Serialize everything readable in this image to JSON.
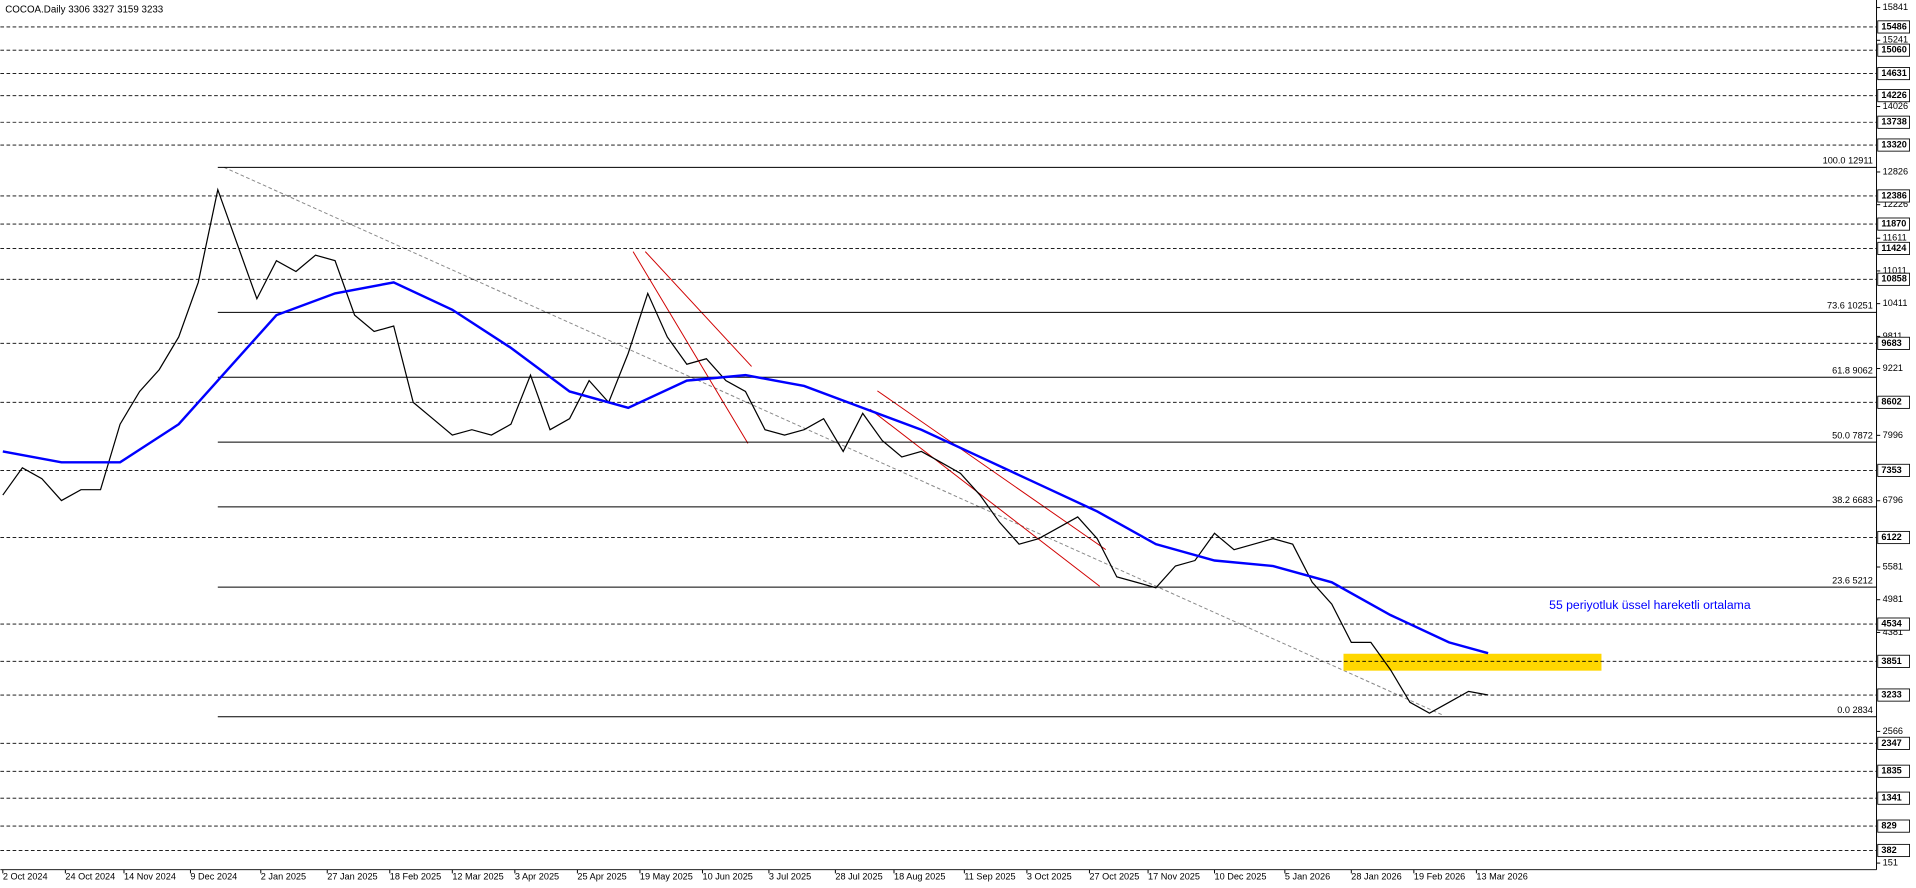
{
  "chart_data": {
    "type": "line",
    "title": "COCOA.Daily  3306 3327 3159 3233",
    "annotation": "55 periyotluk üssel hareketli ortalama",
    "ylim": [
      30,
      15980
    ],
    "yticks": [
      15841,
      15241,
      14026,
      12826,
      12226,
      11611,
      11011,
      10411,
      9811,
      9221,
      7996,
      6796,
      5581,
      4981,
      4381,
      2566,
      151
    ],
    "levels": [
      15486,
      15060,
      14631,
      14226,
      13738,
      13320,
      12386,
      11870,
      11424,
      10858,
      9683,
      8602,
      7353,
      6122,
      4534,
      3851,
      3233,
      2347,
      1835,
      1341,
      829,
      382
    ],
    "fib": {
      "start": "2024-12-18",
      "levels": [
        {
          "value": 12911,
          "label": "100.0 12911"
        },
        {
          "value": 10251,
          "label": "73.6 10251"
        },
        {
          "value": 9062,
          "label": "61.8 9062"
        },
        {
          "value": 7872,
          "label": "50.0 7872"
        },
        {
          "value": 6683,
          "label": "38.2 6683"
        },
        {
          "value": 5212,
          "label": "23.6 5212"
        },
        {
          "value": 2834,
          "label": "0.0 2834"
        }
      ]
    },
    "zones": [
      {
        "x": [
          "2026-01-26",
          "2026-04-28"
        ],
        "y": [
          3680,
          3990
        ],
        "color": "#ffd700"
      }
    ],
    "xticks": [
      {
        "value": "2024-10-02",
        "label": "2 Oct 2024"
      },
      {
        "value": "2024-10-24",
        "label": "24 Oct 2024"
      },
      {
        "value": "2024-11-14",
        "label": "14 Nov 2024"
      },
      {
        "value": "2024-12-09",
        "label": "9 Dec 2024"
      },
      {
        "value": "2025-01-02",
        "label": "2 Jan 2025"
      },
      {
        "value": "2025-01-27",
        "label": "27 Jan 2025"
      },
      {
        "value": "2025-02-18",
        "label": "18 Feb 2025"
      },
      {
        "value": "2025-03-12",
        "label": "12 Mar 2025"
      },
      {
        "value": "2025-04-03",
        "label": "3 Apr 2025"
      },
      {
        "value": "2025-04-25",
        "label": "25 Apr 2025"
      },
      {
        "value": "2025-05-19",
        "label": "19 May 2025"
      },
      {
        "value": "2025-06-10",
        "label": "10 Jun 2025"
      },
      {
        "value": "2025-07-03",
        "label": "3 Jul 2025"
      },
      {
        "value": "2025-07-28",
        "label": "28 Jul 2025"
      },
      {
        "value": "2025-08-18",
        "label": "18 Aug 2025"
      },
      {
        "value": "2025-09-11",
        "label": "11 Sep 2025"
      },
      {
        "value": "2025-10-03",
        "label": "3 Oct 2025"
      },
      {
        "value": "2025-10-27",
        "label": "27 Oct 2025"
      },
      {
        "value": "2025-11-17",
        "label": "17 Nov 2025"
      },
      {
        "value": "2025-12-10",
        "label": "10 Dec 2025"
      },
      {
        "value": "2026-01-05",
        "label": "5 Jan 2026"
      },
      {
        "value": "2026-01-28",
        "label": "28 Jan 2026"
      },
      {
        "value": "2026-02-19",
        "label": "19 Feb 2026"
      },
      {
        "value": "2026-03-13",
        "label": "13 Mar 2026"
      }
    ],
    "series": [
      {
        "color": "#000000",
        "x": [
          "2024-10-02",
          "2024-10-09",
          "2024-10-16",
          "2024-10-23",
          "2024-10-30",
          "2024-11-06",
          "2024-11-13",
          "2024-11-20",
          "2024-11-27",
          "2024-12-04",
          "2024-12-11",
          "2024-12-18",
          "2024-12-25",
          "2025-01-01",
          "2025-01-08",
          "2025-01-15",
          "2025-01-22",
          "2025-01-29",
          "2025-02-05",
          "2025-02-12",
          "2025-02-19",
          "2025-02-26",
          "2025-03-05",
          "2025-03-12",
          "2025-03-19",
          "2025-03-26",
          "2025-04-02",
          "2025-04-09",
          "2025-04-16",
          "2025-04-23",
          "2025-04-30",
          "2025-05-07",
          "2025-05-14",
          "2025-05-21",
          "2025-05-28",
          "2025-06-04",
          "2025-06-11",
          "2025-06-18",
          "2025-06-25",
          "2025-07-02",
          "2025-07-09",
          "2025-07-16",
          "2025-07-23",
          "2025-07-30",
          "2025-08-06",
          "2025-08-13",
          "2025-08-20",
          "2025-08-27",
          "2025-09-03",
          "2025-09-10",
          "2025-09-17",
          "2025-09-24",
          "2025-10-01",
          "2025-10-08",
          "2025-10-15",
          "2025-10-22",
          "2025-10-29",
          "2025-11-05",
          "2025-11-12",
          "2025-11-19",
          "2025-11-26",
          "2025-12-03",
          "2025-12-10",
          "2025-12-17",
          "2025-12-24",
          "2025-12-31",
          "2026-01-07",
          "2026-01-14",
          "2026-01-21",
          "2026-01-28",
          "2026-02-04",
          "2026-02-11",
          "2026-02-18",
          "2026-02-25",
          "2026-03-04",
          "2026-03-11",
          "2026-03-18"
        ],
        "values": [
          6900,
          7400,
          7200,
          6800,
          7000,
          7000,
          8200,
          8800,
          9200,
          9800,
          10800,
          12500,
          11500,
          10500,
          11200,
          11000,
          11300,
          11200,
          10200,
          9900,
          10000,
          8600,
          8300,
          8000,
          8100,
          8000,
          8200,
          9100,
          8100,
          8300,
          9000,
          8600,
          9500,
          10600,
          9800,
          9300,
          9400,
          9000,
          8800,
          8100,
          8000,
          8100,
          8300,
          7700,
          8400,
          7900,
          7600,
          7700,
          7500,
          7300,
          6900,
          6400,
          6000,
          6100,
          6300,
          6500,
          6100,
          5400,
          5300,
          5200,
          5600,
          5700,
          6200,
          5900,
          6000,
          6100,
          6000,
          5300,
          4900,
          4200,
          4200,
          3700,
          3100,
          2900,
          3100,
          3300,
          3233
        ]
      },
      {
        "color": "#0000ff",
        "x": [
          "2024-10-02",
          "2024-10-23",
          "2024-11-13",
          "2024-12-04",
          "2024-12-18",
          "2025-01-08",
          "2025-01-29",
          "2025-02-19",
          "2025-03-12",
          "2025-04-02",
          "2025-04-23",
          "2025-05-14",
          "2025-06-04",
          "2025-06-25",
          "2025-07-16",
          "2025-08-06",
          "2025-08-27",
          "2025-09-17",
          "2025-10-08",
          "2025-10-29",
          "2025-11-19",
          "2025-12-10",
          "2025-12-31",
          "2026-01-21",
          "2026-02-11",
          "2026-03-04",
          "2026-03-18"
        ],
        "values": [
          7700,
          7500,
          7500,
          8200,
          9000,
          10200,
          10600,
          10800,
          10300,
          9600,
          8800,
          8500,
          9000,
          9100,
          8900,
          8500,
          8100,
          7600,
          7100,
          6600,
          6000,
          5700,
          5600,
          5300,
          4700,
          4200,
          4000
        ]
      }
    ]
  }
}
